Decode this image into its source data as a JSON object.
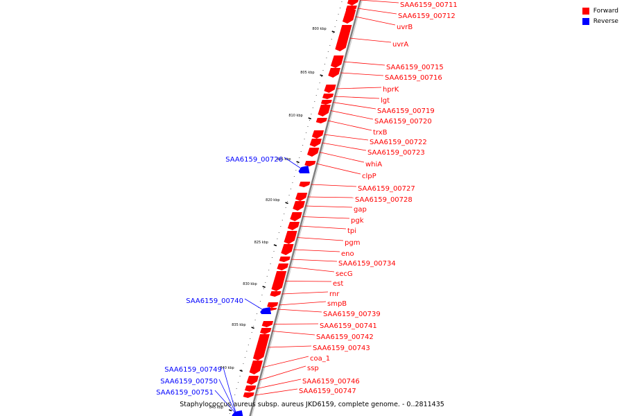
{
  "caption": "Staphylococcus aureus subsp. aureus JKD6159, complete genome. - 0..2811435",
  "legend": [
    {
      "label": "Forward",
      "color": "#ff0000"
    },
    {
      "label": "Reverse",
      "color": "#0000ff"
    }
  ],
  "colors": {
    "forward": "#ff0000",
    "reverse": "#0000ff",
    "backbone": "#808080"
  },
  "ticks": [
    "800 kbp",
    "805 kbp",
    "810 kbp",
    "815 kbp",
    "820 kbp",
    "825 kbp",
    "830 kbp",
    "835 kbp",
    "840 kbp",
    "845 kbp"
  ],
  "genes": [
    {
      "name": "SAA6159_00711",
      "strand": "forward"
    },
    {
      "name": "SAA6159_00712",
      "strand": "forward"
    },
    {
      "name": "uvrB",
      "strand": "forward"
    },
    {
      "name": "uvrA",
      "strand": "forward"
    },
    {
      "name": "SAA6159_00715",
      "strand": "forward"
    },
    {
      "name": "SAA6159_00716",
      "strand": "forward"
    },
    {
      "name": "hprK",
      "strand": "forward"
    },
    {
      "name": "lgt",
      "strand": "forward"
    },
    {
      "name": "SAA6159_00719",
      "strand": "forward"
    },
    {
      "name": "SAA6159_00720",
      "strand": "forward"
    },
    {
      "name": "trxB",
      "strand": "forward"
    },
    {
      "name": "SAA6159_00722",
      "strand": "forward"
    },
    {
      "name": "SAA6159_00723",
      "strand": "forward"
    },
    {
      "name": "whiA",
      "strand": "forward"
    },
    {
      "name": "clpP",
      "strand": "forward"
    },
    {
      "name": "SAA6159_00726",
      "strand": "reverse"
    },
    {
      "name": "SAA6159_00727",
      "strand": "forward"
    },
    {
      "name": "SAA6159_00728",
      "strand": "forward"
    },
    {
      "name": "gap",
      "strand": "forward"
    },
    {
      "name": "pgk",
      "strand": "forward"
    },
    {
      "name": "tpi",
      "strand": "forward"
    },
    {
      "name": "pgm",
      "strand": "forward"
    },
    {
      "name": "eno",
      "strand": "forward"
    },
    {
      "name": "SAA6159_00734",
      "strand": "forward"
    },
    {
      "name": "secG",
      "strand": "forward"
    },
    {
      "name": "est",
      "strand": "forward"
    },
    {
      "name": "rnr",
      "strand": "forward"
    },
    {
      "name": "smpB",
      "strand": "forward"
    },
    {
      "name": "SAA6159_00739",
      "strand": "forward"
    },
    {
      "name": "SAA6159_00740",
      "strand": "reverse"
    },
    {
      "name": "SAA6159_00741",
      "strand": "forward"
    },
    {
      "name": "SAA6159_00742",
      "strand": "forward"
    },
    {
      "name": "SAA6159_00743",
      "strand": "forward"
    },
    {
      "name": "coa_1",
      "strand": "forward"
    },
    {
      "name": "ssp",
      "strand": "forward"
    },
    {
      "name": "SAA6159_00746",
      "strand": "forward"
    },
    {
      "name": "SAA6159_00747",
      "strand": "forward"
    },
    {
      "name": "SAA6159_00749",
      "strand": "reverse"
    },
    {
      "name": "SAA6159_00750",
      "strand": "reverse"
    },
    {
      "name": "SAA6159_00751",
      "strand": "reverse"
    }
  ]
}
